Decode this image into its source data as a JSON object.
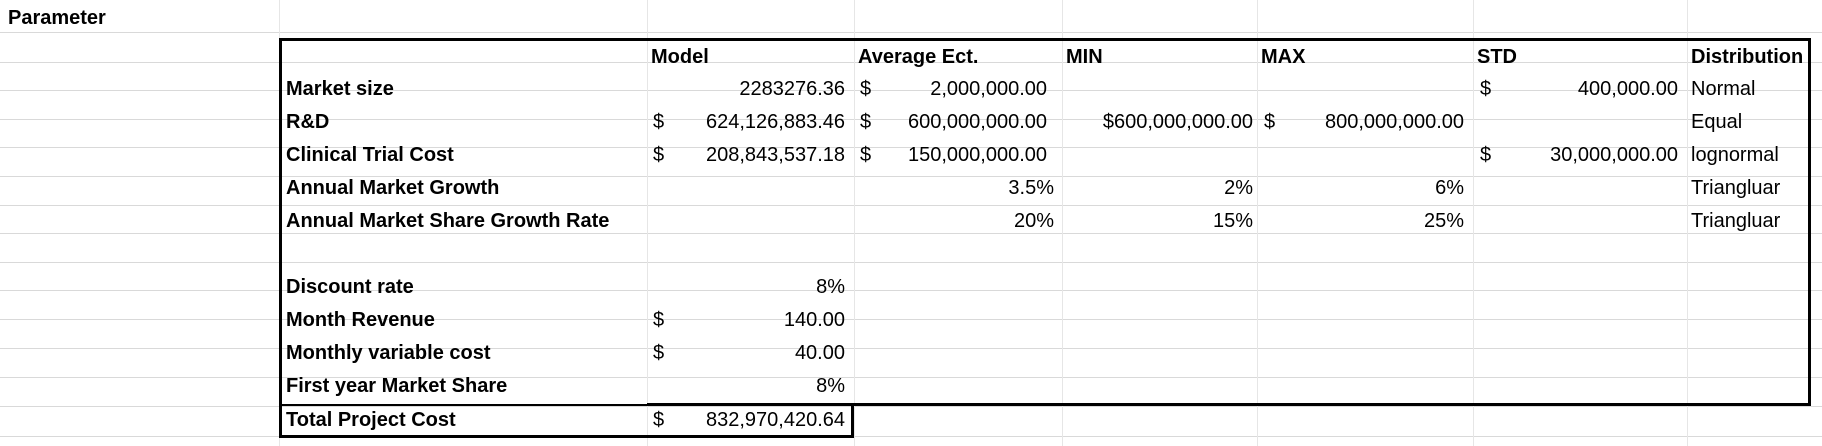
{
  "sheet": {
    "title": "Parameter",
    "headers": [
      "Model",
      "Average Ect.",
      "MIN",
      "MAX",
      "STD",
      "Distribution"
    ],
    "rows": [
      {
        "label": "Market size",
        "model": "2283276.36",
        "avg_cur": "$",
        "avg": "2,000,000.00",
        "min": "",
        "max_cur": "",
        "max": "",
        "std_cur": "$",
        "std": "400,000.00",
        "dist": "Normal"
      },
      {
        "label": "R&D",
        "model_cur": "$",
        "model": "624,126,883.46",
        "avg_cur": "$",
        "avg": "600,000,000.00",
        "min": "$600,000,000.00",
        "max_cur": "$",
        "max": "800,000,000.00",
        "std_cur": "",
        "std": "",
        "dist": "Equal"
      },
      {
        "label": "Clinical Trial Cost",
        "model_cur": "$",
        "model": "208,843,537.18",
        "avg_cur": "$",
        "avg": "150,000,000.00",
        "min": "",
        "max_cur": "",
        "max": "",
        "std_cur": "$",
        "std": "30,000,000.00",
        "dist": "lognormal"
      },
      {
        "label": "Annual Market Growth",
        "model": "",
        "avg": "3.5%",
        "min": "2%",
        "max": "6%",
        "std": "",
        "dist": "Triangluar"
      },
      {
        "label": "Annual Market Share Growth Rate",
        "model": "",
        "avg": "20%",
        "min": "15%",
        "max": "25%",
        "std": "",
        "dist": "Triangluar"
      }
    ],
    "params": [
      {
        "label": "Discount rate",
        "cur": "",
        "value": "8%"
      },
      {
        "label": "Month Revenue",
        "cur": "$",
        "value": "140.00"
      },
      {
        "label": "Monthly variable cost",
        "cur": "$",
        "value": "40.00"
      },
      {
        "label": "First year Market Share",
        "cur": "",
        "value": "8%"
      }
    ],
    "total": {
      "label": "Total Project Cost",
      "cur": "$",
      "value": "832,970,420.64"
    }
  }
}
